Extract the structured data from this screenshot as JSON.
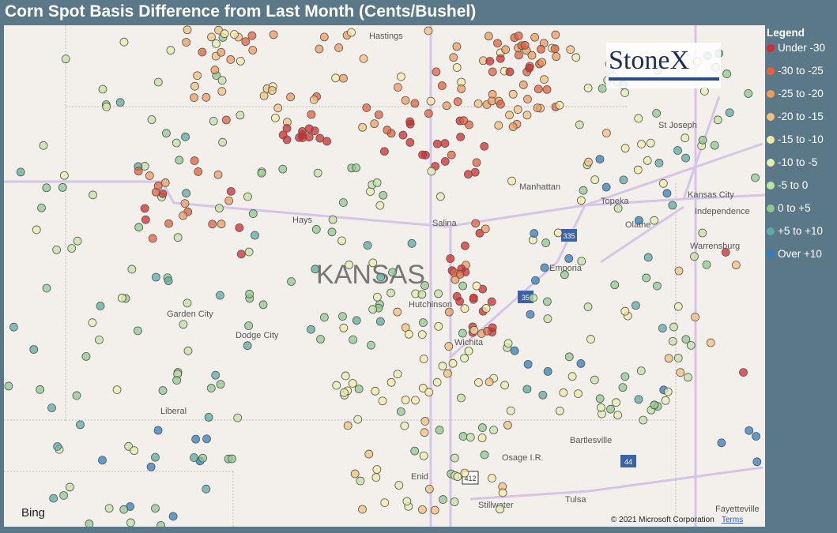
{
  "header": {
    "title": "Corn Spot Basis Difference from Last Month (Cents/Bushel)"
  },
  "legend": {
    "title": "Legend",
    "items": [
      {
        "label": "Under -30",
        "color": "#d62b2b"
      },
      {
        "label": "-30 to -25",
        "color": "#e6603a"
      },
      {
        "label": "-25 to -20",
        "color": "#f29a5c"
      },
      {
        "label": "-20 to -15",
        "color": "#f7c07a"
      },
      {
        "label": "-15 to -10",
        "color": "#f8e9a2"
      },
      {
        "label": "-10 to -5",
        "color": "#e4efa9"
      },
      {
        "label": "-5 to 0",
        "color": "#c3e2a0"
      },
      {
        "label": "0 to +5",
        "color": "#8ccb8c"
      },
      {
        "label": "+5 to +10",
        "color": "#5aaca6"
      },
      {
        "label": "Over +10",
        "color": "#2f7fc1"
      }
    ]
  },
  "map": {
    "state_label": "KANSAS",
    "logo": "StoneX",
    "bing": "Bing",
    "copyright": "© 2021 Microsoft Corporation",
    "terms": "Terms",
    "labels": [
      "Hastings",
      "St Joseph",
      "Manhattan",
      "Topeka",
      "Kansas City",
      "Independence",
      "Olathe",
      "Warrensburg",
      "Hays",
      "Salina",
      "Emporia",
      "Hutchinson",
      "Garden City",
      "Dodge City",
      "Wichita",
      "Liberal",
      "Bartlesville",
      "Osage I.R.",
      "Enid",
      "Stillwater",
      "Tulsa",
      "Fayetteville"
    ],
    "shields": [
      "335",
      "35",
      "44",
      "412"
    ]
  }
}
